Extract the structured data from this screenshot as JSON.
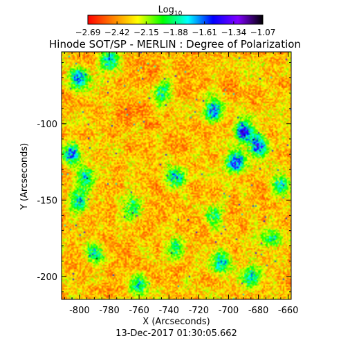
{
  "chart_data": {
    "type": "heatmap",
    "title": "Hinode SOT/SP - MERLIN : Degree of Polarization",
    "footer": "13-Dec-2017 01:30:05.662",
    "xlabel": "X (Arcseconds)",
    "ylabel": "Y (Arcseconds)",
    "xlim": [
      -812,
      -658
    ],
    "ylim": [
      -215,
      -53
    ],
    "xticks": [
      -800,
      -780,
      -760,
      -740,
      -720,
      -700,
      -680,
      -660
    ],
    "yticks": [
      -100,
      -150,
      -200
    ],
    "xtick_labels": [
      "-800",
      "-780",
      "-760",
      "-740",
      "-720",
      "-700",
      "-680",
      "-660"
    ],
    "ytick_labels": [
      "-100",
      "-150",
      "-200"
    ],
    "colorbar": {
      "title": "Log10",
      "title_base": "Log",
      "title_subscript": "10",
      "range": [
        -2.69,
        -1.07
      ],
      "ticks": [
        -2.69,
        -2.42,
        -2.15,
        -1.88,
        -1.61,
        -1.34,
        -1.07
      ],
      "tick_labels": [
        "−2.69",
        "−2.42",
        "−2.15",
        "−1.88",
        "−1.61",
        "−1.34",
        "−1.07"
      ],
      "colors": [
        "#ff0000",
        "#ff8000",
        "#ffff00",
        "#00ff00",
        "#00ffff",
        "#0000ff",
        "#8000ff",
        "#000000"
      ]
    },
    "high_polarization_regions": [
      {
        "x": -800,
        "y": -70,
        "strength": 0.8
      },
      {
        "x": -780,
        "y": -58,
        "strength": 0.7
      },
      {
        "x": -745,
        "y": -80,
        "strength": 0.6
      },
      {
        "x": -710,
        "y": -92,
        "strength": 0.9
      },
      {
        "x": -690,
        "y": -105,
        "strength": 1.0
      },
      {
        "x": -680,
        "y": -115,
        "strength": 1.0
      },
      {
        "x": -695,
        "y": -125,
        "strength": 0.9
      },
      {
        "x": -805,
        "y": -120,
        "strength": 0.9
      },
      {
        "x": -795,
        "y": -135,
        "strength": 0.6
      },
      {
        "x": -735,
        "y": -135,
        "strength": 0.8
      },
      {
        "x": -765,
        "y": -155,
        "strength": 0.6
      },
      {
        "x": -800,
        "y": -150,
        "strength": 0.7
      },
      {
        "x": -710,
        "y": -160,
        "strength": 0.6
      },
      {
        "x": -735,
        "y": -180,
        "strength": 0.6
      },
      {
        "x": -705,
        "y": -190,
        "strength": 0.7
      },
      {
        "x": -685,
        "y": -200,
        "strength": 0.6
      },
      {
        "x": -760,
        "y": -205,
        "strength": 0.6
      },
      {
        "x": -790,
        "y": -185,
        "strength": 0.5
      },
      {
        "x": -665,
        "y": -140,
        "strength": 0.6
      },
      {
        "x": -670,
        "y": -175,
        "strength": 0.5
      }
    ]
  }
}
